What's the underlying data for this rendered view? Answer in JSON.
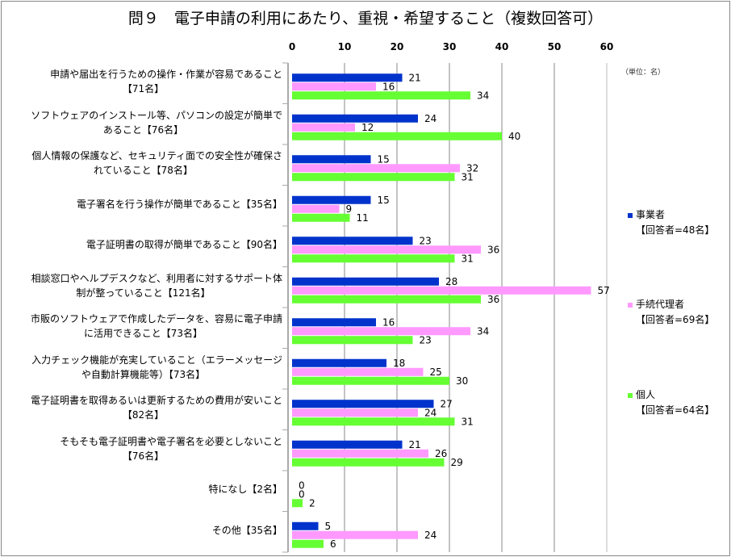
{
  "chart_data": {
    "type": "bar",
    "orientation": "horizontal",
    "title": "問９　電子申請の利用にあたり、重視・希望すること（複数回答可）",
    "unit_note": "（単位：名）",
    "xlim": [
      0,
      60
    ],
    "xticks": [
      "0",
      "10",
      "20",
      "30",
      "40",
      "50",
      "60"
    ],
    "grid": true,
    "legend_position": "right",
    "categories": [
      [
        "申請や届出を行うための操作・作業が容易であること",
        "【71名】"
      ],
      [
        "ソフトウェアのインストール等、パソコンの設定が簡単で",
        "あること【76名】"
      ],
      [
        "個人情報の保護など、セキュリティ面での安全性が確保さ",
        "れていること【78名】"
      ],
      [
        "電子署名を行う操作が簡単であること【35名】"
      ],
      [
        "電子証明書の取得が簡単であること【90名】"
      ],
      [
        "相談窓口やヘルプデスクなど、利用者に対するサポート体",
        "制が整っていること【121名】"
      ],
      [
        "市販のソフトウェアで作成したデータを、容易に電子申請",
        "に活用できること【73名】"
      ],
      [
        "入力チェック機能が充実していること（エラーメッセージ",
        "や自動計算機能等）【73名】"
      ],
      [
        "電子証明書を取得あるいは更新するための費用が安いこと",
        "【82名】"
      ],
      [
        "そもそも電子証明書や電子署名を必要としないこと",
        "【76名】"
      ],
      [
        "特になし【2名】"
      ],
      [
        "その他【35名】"
      ]
    ],
    "series": [
      {
        "name": "事業者",
        "note": "【回答者=48名】",
        "color": "#0033cc",
        "values": [
          21,
          24,
          15,
          15,
          23,
          28,
          16,
          18,
          27,
          21,
          0,
          5
        ]
      },
      {
        "name": "手続代理者",
        "note": "【回答者=69名】",
        "color": "#ff99ff",
        "values": [
          16,
          12,
          32,
          9,
          36,
          57,
          34,
          25,
          24,
          26,
          0,
          24
        ]
      },
      {
        "name": "個人",
        "note": "【回答者=64名】",
        "color": "#66ff33",
        "values": [
          34,
          40,
          31,
          11,
          31,
          36,
          23,
          30,
          31,
          29,
          2,
          6
        ]
      }
    ]
  }
}
